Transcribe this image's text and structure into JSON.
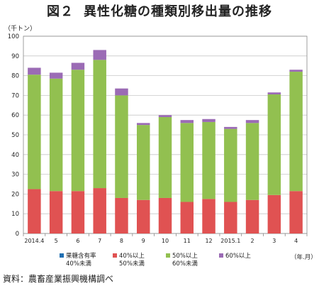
{
  "title": {
    "fig_no": "図２",
    "text": "異性化糖の種類別移出量の推移"
  },
  "unit_label": "（千トン）",
  "period_unit": "（年.月）",
  "source": "資料：農畜産業振興機構調べ",
  "legend": [
    {
      "line1": "果糖含有率",
      "line2": "40%未満",
      "color": "#1f6fb2"
    },
    {
      "line1": "40%以上",
      "line2": "50%未満",
      "color": "#e05252"
    },
    {
      "line1": "50%以上",
      "line2": "60%未満",
      "color": "#92c050"
    },
    {
      "line1": "60%以上",
      "line2": "",
      "color": "#9b6bb5"
    }
  ],
  "chart_data": {
    "type": "bar",
    "stacked": true,
    "categories": [
      "2014.4",
      "5",
      "6",
      "7",
      "8",
      "9",
      "10",
      "11",
      "12",
      "2015.1",
      "2",
      "3",
      "4"
    ],
    "series": [
      {
        "name": "果糖含有率40%未満",
        "color": "#1f6fb2",
        "values": [
          0,
          0,
          0,
          0,
          0,
          0,
          0,
          0,
          0,
          0,
          0,
          0,
          0
        ]
      },
      {
        "name": "40%以上50%未満",
        "color": "#e05252",
        "values": [
          22.5,
          21.5,
          21.5,
          23,
          18,
          17,
          18,
          16,
          17.5,
          16,
          17,
          19.5,
          21.5
        ]
      },
      {
        "name": "50%以上60%未満",
        "color": "#92c050",
        "values": [
          58,
          57,
          61.5,
          65,
          52,
          38,
          41,
          40,
          39,
          37,
          39,
          51,
          60.5
        ]
      },
      {
        "name": "60%以上",
        "color": "#9b6bb5",
        "values": [
          3.5,
          3,
          3.5,
          5,
          3.5,
          1,
          1,
          1.5,
          1.5,
          1,
          1.5,
          1,
          1
        ]
      }
    ],
    "ylim": [
      0,
      100
    ],
    "yticks": [
      0,
      10,
      20,
      30,
      40,
      50,
      60,
      70,
      80,
      90,
      100
    ],
    "grid": true
  }
}
